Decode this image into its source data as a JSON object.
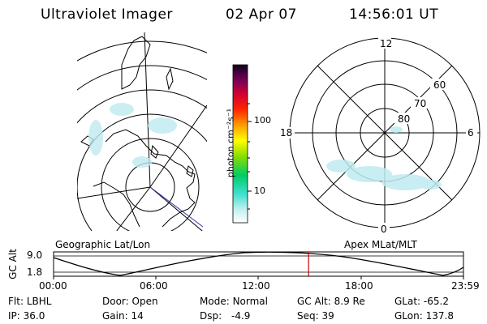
{
  "header": {
    "instrument": "Ultraviolet Imager",
    "date": "02 Apr 07",
    "time": "14:56:01 UT"
  },
  "colorbar": {
    "unit": "photon cm⁻²s⁻¹",
    "ticks": [
      "100",
      "10"
    ]
  },
  "geo_map": {
    "label": "Geographic Lat/Lon"
  },
  "polar_plot": {
    "label": "Apex MLat/MLT",
    "mlt_labels": [
      "12",
      "18",
      "6",
      "0"
    ],
    "lat_labels": [
      "60",
      "70",
      "80"
    ]
  },
  "altitude_plot": {
    "ylabel": "GC Alt",
    "yticks": [
      "9.0",
      "1.8"
    ],
    "xticks": [
      "00:00",
      "06:00",
      "12:00",
      "18:00",
      "23:59"
    ],
    "current_time_hours": 14.93
  },
  "status": {
    "row1": [
      {
        "key": "Flt:",
        "value": "LBHL"
      },
      {
        "key": "Door:",
        "value": "Open"
      },
      {
        "key": "Mode:",
        "value": "Normal"
      },
      {
        "key": "GC Alt:",
        "value": "8.9 Re"
      },
      {
        "key": "GLat:",
        "value": "-65.2"
      }
    ],
    "row2": [
      {
        "key": "IP:",
        "value": "36.0"
      },
      {
        "key": "Gain:",
        "value": "14"
      },
      {
        "key": "Dsp:",
        "value": "-4.9"
      },
      {
        "key": "Seq:",
        "value": "39"
      },
      {
        "key": "GLon:",
        "value": "137.8"
      }
    ]
  },
  "colors": {
    "aurora": "#bfeaf0",
    "marker": "#cc0000",
    "scan_line": "#3333aa"
  }
}
